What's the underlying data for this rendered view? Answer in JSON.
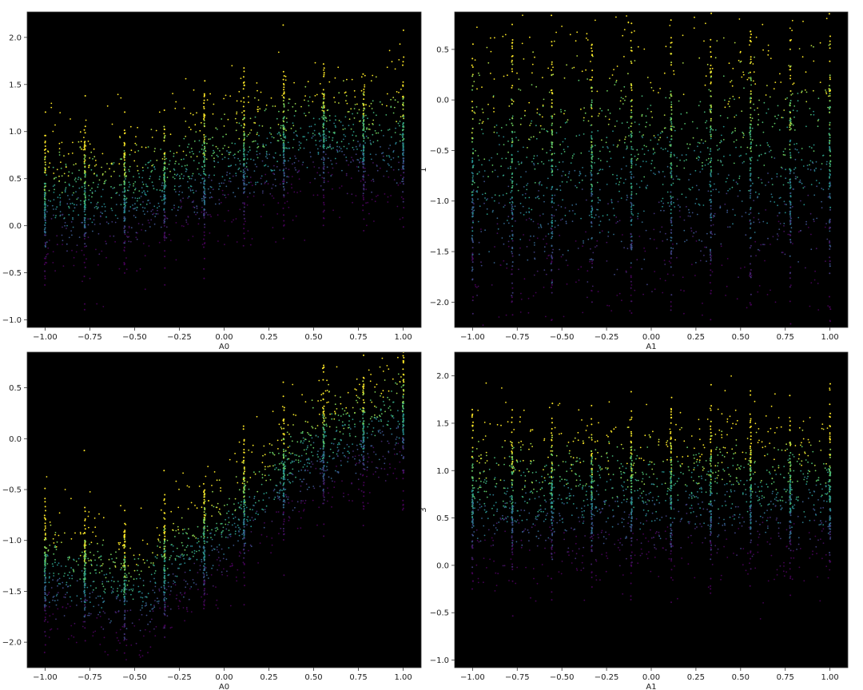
{
  "chart_data": [
    {
      "type": "scatter",
      "xlabel": "A0",
      "ylabel": "",
      "xlim": [
        -1.1,
        1.1
      ],
      "ylim": [
        -1.08,
        2.27
      ],
      "xticks": [
        "−1.00",
        "−0.75",
        "−0.50",
        "−0.25",
        "0.00",
        "0.25",
        "0.50",
        "0.75",
        "1.00"
      ],
      "yticks": [
        "−1.0",
        "−0.5",
        "0.0",
        "0.5",
        "1.0",
        "1.5",
        "2.0"
      ],
      "background": "#000000",
      "colormap": "viridis",
      "x_levels": [
        -1.0,
        -0.778,
        -0.556,
        -0.333,
        -0.111,
        0.111,
        0.333,
        0.556,
        0.778,
        1.0
      ],
      "trend": {
        "x": [
          -1.0,
          -0.5,
          0.0,
          0.5,
          1.0
        ],
        "y_center": [
          0.25,
          0.35,
          0.65,
          0.95,
          0.9
        ],
        "spread": 0.35
      }
    },
    {
      "type": "scatter",
      "xlabel": "A1",
      "ylabel": "1",
      "xlim": [
        -1.1,
        1.1
      ],
      "ylim": [
        -2.25,
        0.87
      ],
      "xticks": [
        "−1.00",
        "−0.75",
        "−0.50",
        "−0.25",
        "0.00",
        "0.25",
        "0.50",
        "0.75",
        "1.00"
      ],
      "yticks": [
        "−2.0",
        "−1.5",
        "−1.0",
        "−0.5",
        "0.0",
        "0.5"
      ],
      "background": "#000000",
      "colormap": "viridis",
      "x_levels": [
        -1.0,
        -0.778,
        -0.556,
        -0.333,
        -0.111,
        0.111,
        0.333,
        0.556,
        0.778,
        1.0
      ],
      "trend": {
        "x": [
          -1.0,
          0.0,
          1.0
        ],
        "y_center": [
          -0.75,
          -0.7,
          -0.6
        ],
        "spread": 0.7
      }
    },
    {
      "type": "scatter",
      "xlabel": "A0",
      "ylabel": "",
      "xlim": [
        -1.1,
        1.1
      ],
      "ylim": [
        -2.25,
        0.85
      ],
      "xticks": [
        "−1.00",
        "−0.75",
        "−0.50",
        "−0.25",
        "0.00",
        "0.25",
        "0.50",
        "0.75",
        "1.00"
      ],
      "yticks": [
        "−2.0",
        "−1.5",
        "−1.0",
        "−0.5",
        "0.0",
        "0.5"
      ],
      "background": "#000000",
      "colormap": "viridis",
      "x_levels": [
        -1.0,
        -0.778,
        -0.556,
        -0.333,
        -0.111,
        0.111,
        0.333,
        0.556,
        0.778,
        1.0
      ],
      "trend": {
        "x": [
          -1.0,
          -0.5,
          0.0,
          0.5,
          1.0
        ],
        "y_center": [
          -1.3,
          -1.5,
          -0.9,
          -0.1,
          0.2
        ],
        "spread": 0.3
      }
    },
    {
      "type": "scatter",
      "xlabel": "A1",
      "ylabel": "3",
      "xlim": [
        -1.1,
        1.1
      ],
      "ylim": [
        -1.08,
        2.25
      ],
      "xticks": [
        "−1.00",
        "−0.75",
        "−0.50",
        "−0.25",
        "0.00",
        "0.25",
        "0.50",
        "0.75",
        "1.00"
      ],
      "yticks": [
        "−1.0",
        "−0.5",
        "0.0",
        "0.5",
        "1.0",
        "1.5",
        "2.0"
      ],
      "background": "#000000",
      "colormap": "viridis",
      "x_levels": [
        -1.0,
        -0.778,
        -0.556,
        -0.333,
        -0.111,
        0.111,
        0.333,
        0.556,
        0.778,
        1.0
      ],
      "trend": {
        "x": [
          -1.0,
          0.0,
          1.0
        ],
        "y_center": [
          0.7,
          0.75,
          0.75
        ],
        "spread": 0.4
      }
    }
  ]
}
